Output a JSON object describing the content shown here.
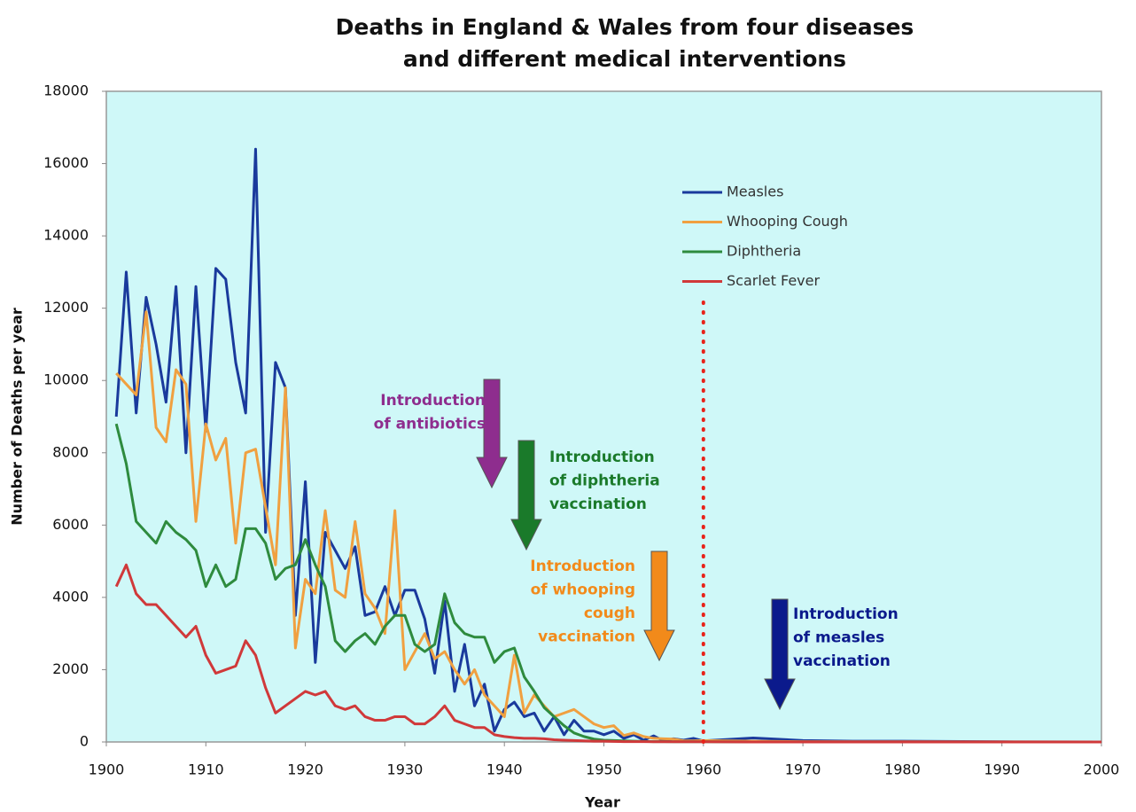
{
  "chart_data": {
    "type": "line",
    "title": [
      "Deaths in England & Wales from four diseases",
      "and different medical interventions"
    ],
    "xlabel": "Year",
    "ylabel": "Number of Deaths per year",
    "x": [
      1901,
      1902,
      1903,
      1904,
      1905,
      1906,
      1907,
      1908,
      1909,
      1910,
      1911,
      1912,
      1913,
      1914,
      1915,
      1916,
      1917,
      1918,
      1919,
      1920,
      1921,
      1922,
      1923,
      1924,
      1925,
      1926,
      1927,
      1928,
      1929,
      1930,
      1931,
      1932,
      1933,
      1934,
      1935,
      1936,
      1937,
      1938,
      1939,
      1940,
      1941,
      1942,
      1943,
      1944,
      1945,
      1946,
      1947,
      1948,
      1949,
      1950,
      1951,
      1952,
      1953,
      1954,
      1955,
      1956,
      1957,
      1958,
      1959,
      1960,
      1965,
      1970,
      1975,
      1980,
      1990,
      2000
    ],
    "series": [
      {
        "name": "Measles",
        "color": "#1a3a9c",
        "values": [
          9000,
          13000,
          9100,
          12300,
          11000,
          9400,
          12600,
          8000,
          12600,
          8600,
          13100,
          12800,
          10500,
          9100,
          16400,
          5800,
          10500,
          9800,
          3500,
          7200,
          2200,
          5800,
          5300,
          4800,
          5400,
          3500,
          3600,
          4300,
          3500,
          4200,
          4200,
          3400,
          1900,
          3900,
          1400,
          2700,
          1000,
          1600,
          300,
          900,
          1100,
          700,
          800,
          300,
          700,
          200,
          600,
          300,
          300,
          200,
          300,
          100,
          200,
          50,
          170,
          30,
          90,
          50,
          100,
          30,
          110,
          40,
          20,
          20,
          5,
          0
        ]
      },
      {
        "name": "Whooping Cough",
        "color": "#f0a040",
        "values": [
          10200,
          9900,
          9600,
          11900,
          8700,
          8300,
          10300,
          9900,
          6100,
          8800,
          7800,
          8400,
          5500,
          8000,
          8100,
          6500,
          4900,
          9800,
          2600,
          4500,
          4100,
          6400,
          4200,
          4000,
          6100,
          4100,
          3700,
          3000,
          6400,
          2000,
          2500,
          3000,
          2300,
          2500,
          2000,
          1600,
          2000,
          1300,
          1000,
          700,
          2400,
          800,
          1300,
          1000,
          700,
          800,
          900,
          700,
          500,
          400,
          450,
          180,
          250,
          150,
          100,
          90,
          80,
          30,
          30,
          40,
          20,
          10,
          5,
          5,
          2,
          0
        ]
      },
      {
        "name": "Diphtheria",
        "color": "#2e8b3e",
        "values": [
          8800,
          7700,
          6100,
          5800,
          5500,
          6100,
          5800,
          5600,
          5300,
          4300,
          4900,
          4300,
          4500,
          5900,
          5900,
          5500,
          4500,
          4800,
          4900,
          5600,
          4900,
          4300,
          2800,
          2500,
          2800,
          3000,
          2700,
          3200,
          3500,
          3500,
          2700,
          2500,
          2700,
          4100,
          3300,
          3000,
          2900,
          2900,
          2200,
          2500,
          2600,
          1800,
          1400,
          950,
          700,
          450,
          250,
          150,
          80,
          50,
          40,
          30,
          20,
          15,
          10,
          10,
          5,
          5,
          5,
          5,
          0,
          0,
          0,
          0,
          0,
          0
        ]
      },
      {
        "name": "Scarlet Fever",
        "color": "#d0393a",
        "values": [
          4300,
          4900,
          4100,
          3800,
          3800,
          3500,
          3200,
          2900,
          3200,
          2400,
          1900,
          2000,
          2100,
          2800,
          2400,
          1500,
          800,
          1000,
          1200,
          1400,
          1300,
          1400,
          1000,
          900,
          1000,
          700,
          600,
          600,
          700,
          700,
          500,
          500,
          700,
          1000,
          600,
          500,
          400,
          400,
          200,
          150,
          120,
          100,
          100,
          90,
          60,
          50,
          40,
          30,
          20,
          20,
          15,
          10,
          10,
          10,
          5,
          5,
          5,
          5,
          5,
          5,
          0,
          0,
          0,
          0,
          0,
          0
        ]
      }
    ],
    "xlim": [
      1900,
      2000
    ],
    "xticks": [
      1900,
      1910,
      1920,
      1930,
      1940,
      1950,
      1960,
      1970,
      1980,
      1990,
      2000
    ],
    "ylim": [
      0,
      18000
    ],
    "yticks": [
      0,
      2000,
      4000,
      6000,
      8000,
      10000,
      12000,
      14000,
      16000,
      18000
    ],
    "grid": false,
    "legend": "upper right",
    "plot_background": "#cff8f8",
    "vline": {
      "x": 1960,
      "y": [
        0,
        12200
      ],
      "color": "#e8231a"
    },
    "annotations": [
      {
        "lines": [
          "Introduction",
          "of antibiotics"
        ],
        "color": "#8e2d8e"
      },
      {
        "lines": [
          "Introduction",
          "of diphtheria",
          "vaccination"
        ],
        "color": "#1a7a2a"
      },
      {
        "lines": [
          "Introduction",
          "of whooping",
          "cough",
          "vaccination"
        ],
        "color": "#f28a1a"
      },
      {
        "lines": [
          "Introduction",
          "of measles",
          "vaccination"
        ],
        "color": "#0b1a8c"
      }
    ]
  }
}
